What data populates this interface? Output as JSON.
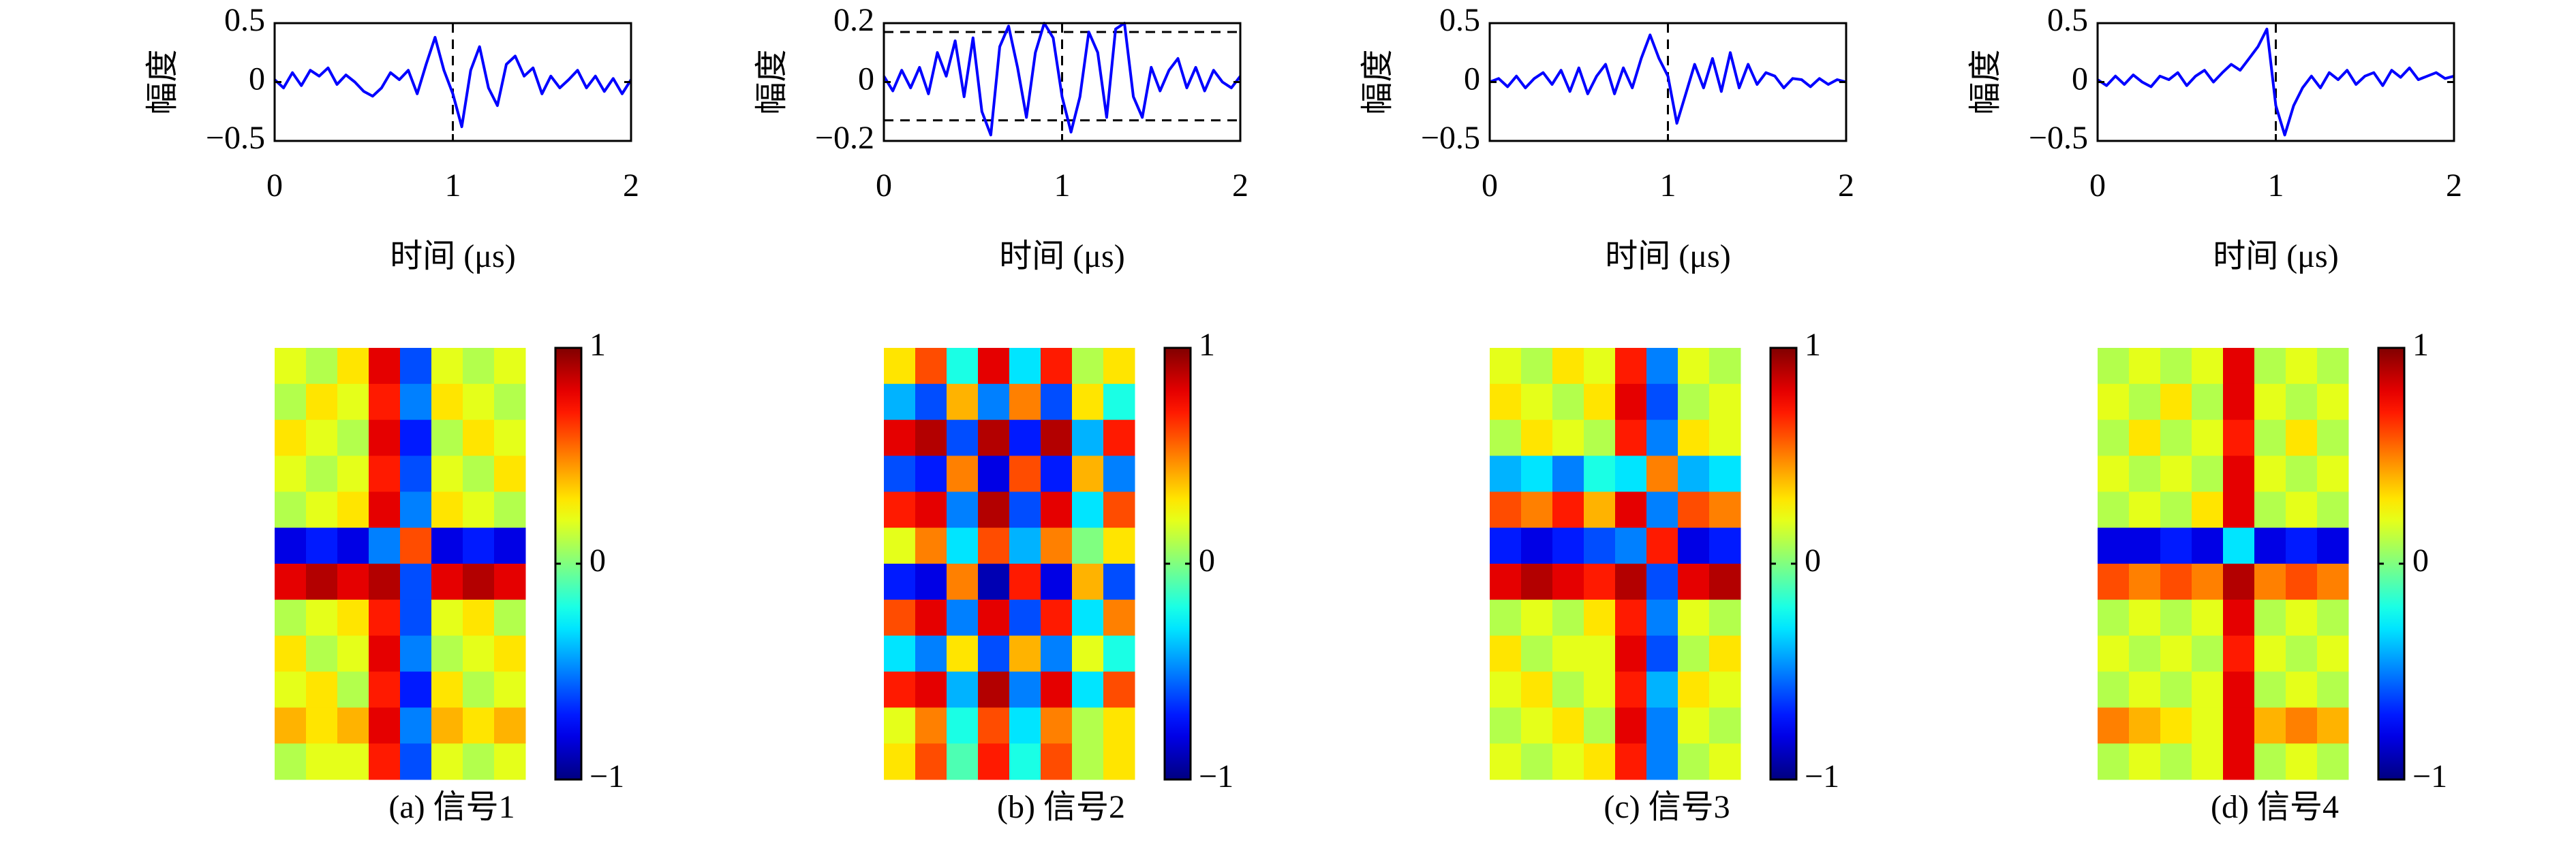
{
  "chart_data": [
    {
      "type": "line",
      "color": "#0000ff",
      "x": [
        0,
        0.05,
        0.1,
        0.15,
        0.2,
        0.25,
        0.3,
        0.35,
        0.4,
        0.45,
        0.5,
        0.55,
        0.6,
        0.65,
        0.7,
        0.75,
        0.8,
        0.85,
        0.9,
        0.95,
        1,
        1.05,
        1.1,
        1.15,
        1.2,
        1.25,
        1.3,
        1.35,
        1.4,
        1.45,
        1.5,
        1.55,
        1.6,
        1.65,
        1.7,
        1.75,
        1.8,
        1.85,
        1.9,
        1.95,
        2
      ],
      "values": [
        0.02,
        -0.05,
        0.08,
        -0.03,
        0.1,
        0.05,
        0.12,
        -0.02,
        0.06,
        0.0,
        -0.08,
        -0.12,
        -0.05,
        0.08,
        0.02,
        0.1,
        -0.1,
        0.15,
        0.38,
        0.1,
        -0.1,
        -0.38,
        0.1,
        0.3,
        -0.05,
        -0.2,
        0.15,
        0.22,
        0.05,
        0.12,
        -0.1,
        0.05,
        -0.05,
        0.02,
        0.1,
        -0.05,
        0.05,
        -0.08,
        0.03,
        -0.1,
        0.02
      ],
      "xlim": [
        0,
        2
      ],
      "xticks": [
        0,
        1,
        2
      ],
      "ylim": [
        -0.5,
        0.5
      ],
      "yticks": [
        {
          "value": -0.5,
          "label": "−0.5"
        },
        0,
        0.5
      ],
      "xlabel": "时间 (μs)",
      "ylabel": "幅度",
      "vlines": [
        1
      ]
    },
    {
      "type": "line",
      "color": "#0000ff",
      "x": [
        0,
        0.05,
        0.1,
        0.15,
        0.2,
        0.25,
        0.3,
        0.35,
        0.4,
        0.45,
        0.5,
        0.55,
        0.6,
        0.65,
        0.7,
        0.75,
        0.8,
        0.85,
        0.9,
        0.95,
        1,
        1.05,
        1.1,
        1.15,
        1.2,
        1.25,
        1.3,
        1.35,
        1.4,
        1.45,
        1.5,
        1.55,
        1.6,
        1.65,
        1.7,
        1.75,
        1.8,
        1.85,
        1.9,
        1.95,
        2
      ],
      "values": [
        0.02,
        -0.03,
        0.04,
        -0.02,
        0.05,
        -0.04,
        0.1,
        0.02,
        0.14,
        -0.05,
        0.15,
        -0.1,
        -0.18,
        0.12,
        0.19,
        0.05,
        -0.12,
        0.1,
        0.2,
        0.15,
        -0.05,
        -0.17,
        -0.05,
        0.17,
        0.1,
        -0.12,
        0.18,
        0.2,
        -0.05,
        -0.12,
        0.05,
        -0.03,
        0.04,
        0.08,
        -0.02,
        0.05,
        -0.03,
        0.04,
        0.0,
        -0.02,
        0.02
      ],
      "xlim": [
        0,
        2
      ],
      "xticks": [
        0,
        1,
        2
      ],
      "ylim": [
        -0.2,
        0.2
      ],
      "yticks": [
        {
          "value": -0.2,
          "label": "−0.2"
        },
        0,
        0.2
      ],
      "xlabel": "时间 (μs)",
      "ylabel": "幅度",
      "vlines": [
        1
      ],
      "hlines": [
        0.17,
        -0.13
      ]
    },
    {
      "type": "line",
      "color": "#0000ff",
      "x": [
        0,
        0.05,
        0.1,
        0.15,
        0.2,
        0.25,
        0.3,
        0.35,
        0.4,
        0.45,
        0.5,
        0.55,
        0.6,
        0.65,
        0.7,
        0.75,
        0.8,
        0.85,
        0.9,
        0.95,
        1,
        1.05,
        1.1,
        1.15,
        1.2,
        1.25,
        1.3,
        1.35,
        1.4,
        1.45,
        1.5,
        1.55,
        1.6,
        1.65,
        1.7,
        1.75,
        1.8,
        1.85,
        1.9,
        1.95,
        2
      ],
      "values": [
        0.0,
        0.03,
        -0.04,
        0.05,
        -0.05,
        0.03,
        0.08,
        -0.02,
        0.1,
        -0.08,
        0.12,
        -0.1,
        0.05,
        0.15,
        -0.1,
        0.12,
        -0.05,
        0.2,
        0.4,
        0.2,
        0.05,
        -0.35,
        -0.1,
        0.15,
        -0.05,
        0.2,
        -0.08,
        0.25,
        -0.05,
        0.15,
        -0.02,
        0.08,
        0.05,
        -0.05,
        0.03,
        0.02,
        -0.04,
        0.03,
        -0.02,
        0.02,
        0.0
      ],
      "xlim": [
        0,
        2
      ],
      "xticks": [
        0,
        1,
        2
      ],
      "ylim": [
        -0.5,
        0.5
      ],
      "yticks": [
        {
          "value": -0.5,
          "label": "−0.5"
        },
        0,
        0.5
      ],
      "xlabel": "时间 (μs)",
      "ylabel": "幅度",
      "vlines": [
        1
      ]
    },
    {
      "type": "line",
      "color": "#0000ff",
      "x": [
        0,
        0.05,
        0.1,
        0.15,
        0.2,
        0.25,
        0.3,
        0.35,
        0.4,
        0.45,
        0.5,
        0.55,
        0.6,
        0.65,
        0.7,
        0.75,
        0.8,
        0.85,
        0.9,
        0.95,
        1,
        1.05,
        1.1,
        1.15,
        1.2,
        1.25,
        1.3,
        1.35,
        1.4,
        1.45,
        1.5,
        1.55,
        1.6,
        1.65,
        1.7,
        1.75,
        1.8,
        1.85,
        1.9,
        1.95,
        2
      ],
      "values": [
        0.02,
        -0.03,
        0.05,
        -0.02,
        0.06,
        0.0,
        -0.04,
        0.05,
        0.02,
        0.08,
        -0.03,
        0.05,
        0.1,
        0.0,
        0.08,
        0.15,
        0.1,
        0.2,
        0.3,
        0.45,
        -0.2,
        -0.45,
        -0.2,
        -0.05,
        0.05,
        -0.05,
        0.08,
        0.02,
        0.1,
        -0.02,
        0.05,
        0.08,
        -0.03,
        0.1,
        0.04,
        0.12,
        0.02,
        0.05,
        0.08,
        0.03,
        0.05
      ],
      "xlim": [
        0,
        2
      ],
      "xticks": [
        0,
        1,
        2
      ],
      "ylim": [
        -0.5,
        0.5
      ],
      "yticks": [
        {
          "value": -0.5,
          "label": "−0.5"
        },
        0,
        0.5
      ],
      "xlabel": "时间 (μs)",
      "ylabel": "幅度",
      "vlines": [
        1
      ]
    },
    {
      "type": "heatmap",
      "caption": "(a) 信号1",
      "zlim": [
        -1,
        1
      ],
      "cticks": [
        {
          "value": -1,
          "label": "−1"
        },
        0,
        1
      ],
      "values": [
        [
          0.2,
          0.1,
          0.3,
          0.8,
          -0.6,
          0.2,
          0.1,
          0.2
        ],
        [
          0.1,
          0.3,
          0.2,
          0.7,
          -0.5,
          0.3,
          0.2,
          0.1
        ],
        [
          0.3,
          0.2,
          0.1,
          0.8,
          -0.7,
          0.1,
          0.3,
          0.2
        ],
        [
          0.2,
          0.1,
          0.2,
          0.7,
          -0.6,
          0.2,
          0.1,
          0.3
        ],
        [
          0.1,
          0.2,
          0.3,
          0.8,
          -0.5,
          0.3,
          0.2,
          0.1
        ],
        [
          -0.8,
          -0.7,
          -0.8,
          -0.5,
          0.6,
          -0.8,
          -0.7,
          -0.8
        ],
        [
          0.8,
          0.9,
          0.8,
          0.9,
          -0.6,
          0.8,
          0.9,
          0.8
        ],
        [
          0.1,
          0.2,
          0.3,
          0.7,
          -0.6,
          0.2,
          0.3,
          0.1
        ],
        [
          0.3,
          0.1,
          0.2,
          0.8,
          -0.5,
          0.1,
          0.2,
          0.3
        ],
        [
          0.2,
          0.3,
          0.1,
          0.7,
          -0.7,
          0.3,
          0.1,
          0.2
        ],
        [
          0.4,
          0.3,
          0.4,
          0.8,
          -0.5,
          0.4,
          0.3,
          0.4
        ],
        [
          0.1,
          0.2,
          0.2,
          0.7,
          -0.6,
          0.2,
          0.1,
          0.2
        ]
      ]
    },
    {
      "type": "heatmap",
      "caption": "(b) 信号2",
      "zlim": [
        -1,
        1
      ],
      "cticks": [
        {
          "value": -1,
          "label": "−1"
        },
        0,
        1
      ],
      "values": [
        [
          0.3,
          0.6,
          -0.2,
          0.8,
          -0.3,
          0.7,
          0.1,
          0.3
        ],
        [
          -0.4,
          -0.6,
          0.4,
          -0.5,
          0.5,
          -0.6,
          0.3,
          -0.2
        ],
        [
          0.8,
          0.9,
          -0.6,
          0.9,
          -0.7,
          0.9,
          -0.4,
          0.7
        ],
        [
          -0.6,
          -0.7,
          0.5,
          -0.8,
          0.6,
          -0.7,
          0.4,
          -0.5
        ],
        [
          0.7,
          0.8,
          -0.5,
          0.9,
          -0.6,
          0.8,
          -0.3,
          0.6
        ],
        [
          0.2,
          0.5,
          -0.3,
          0.6,
          -0.4,
          0.5,
          0.0,
          0.3
        ],
        [
          -0.7,
          -0.8,
          0.5,
          -0.9,
          0.7,
          -0.8,
          0.4,
          -0.6
        ],
        [
          0.6,
          0.8,
          -0.5,
          0.8,
          -0.6,
          0.7,
          -0.3,
          0.5
        ],
        [
          -0.3,
          -0.5,
          0.3,
          -0.6,
          0.4,
          -0.5,
          0.2,
          -0.2
        ],
        [
          0.7,
          0.8,
          -0.4,
          0.9,
          -0.5,
          0.8,
          -0.3,
          0.6
        ],
        [
          0.2,
          0.5,
          -0.2,
          0.6,
          -0.3,
          0.5,
          0.1,
          0.3
        ],
        [
          0.3,
          0.6,
          -0.1,
          0.7,
          -0.2,
          0.6,
          0.1,
          0.3
        ]
      ]
    },
    {
      "type": "heatmap",
      "caption": "(c) 信号3",
      "zlim": [
        -1,
        1
      ],
      "cticks": [
        {
          "value": -1,
          "label": "−1"
        },
        0,
        1
      ],
      "values": [
        [
          0.2,
          0.1,
          0.3,
          0.2,
          0.7,
          -0.5,
          0.2,
          0.1
        ],
        [
          0.3,
          0.2,
          0.1,
          0.3,
          0.8,
          -0.6,
          0.1,
          0.2
        ],
        [
          0.1,
          0.3,
          0.2,
          0.1,
          0.7,
          -0.5,
          0.3,
          0.2
        ],
        [
          -0.4,
          -0.3,
          -0.5,
          -0.2,
          -0.3,
          0.5,
          -0.4,
          -0.3
        ],
        [
          0.6,
          0.5,
          0.7,
          0.4,
          0.8,
          -0.5,
          0.6,
          0.5
        ],
        [
          -0.7,
          -0.8,
          -0.7,
          -0.6,
          -0.5,
          0.7,
          -0.8,
          -0.7
        ],
        [
          0.8,
          0.9,
          0.8,
          0.7,
          0.9,
          -0.6,
          0.8,
          0.9
        ],
        [
          0.1,
          0.2,
          0.1,
          0.3,
          0.7,
          -0.5,
          0.2,
          0.1
        ],
        [
          0.3,
          0.1,
          0.2,
          0.2,
          0.8,
          -0.6,
          0.1,
          0.3
        ],
        [
          0.2,
          0.3,
          0.1,
          0.2,
          0.7,
          -0.4,
          0.3,
          0.2
        ],
        [
          0.1,
          0.2,
          0.3,
          0.1,
          0.8,
          -0.5,
          0.2,
          0.1
        ],
        [
          0.2,
          0.1,
          0.2,
          0.3,
          0.7,
          -0.5,
          0.1,
          0.2
        ]
      ]
    },
    {
      "type": "heatmap",
      "caption": "(d) 信号4",
      "zlim": [
        -1,
        1
      ],
      "cticks": [
        {
          "value": -1,
          "label": "−1"
        },
        0,
        1
      ],
      "values": [
        [
          0.1,
          0.2,
          0.1,
          0.2,
          0.8,
          0.1,
          0.2,
          0.1
        ],
        [
          0.2,
          0.1,
          0.3,
          0.1,
          0.8,
          0.2,
          0.1,
          0.2
        ],
        [
          0.1,
          0.3,
          0.1,
          0.2,
          0.7,
          0.1,
          0.3,
          0.1
        ],
        [
          0.2,
          0.1,
          0.2,
          0.1,
          0.8,
          0.2,
          0.1,
          0.2
        ],
        [
          0.1,
          0.2,
          0.1,
          0.3,
          0.8,
          0.1,
          0.2,
          0.1
        ],
        [
          -0.8,
          -0.8,
          -0.7,
          -0.8,
          -0.3,
          -0.8,
          -0.7,
          -0.8
        ],
        [
          0.6,
          0.5,
          0.6,
          0.5,
          0.9,
          0.5,
          0.6,
          0.5
        ],
        [
          0.1,
          0.2,
          0.1,
          0.2,
          0.8,
          0.1,
          0.2,
          0.1
        ],
        [
          0.2,
          0.1,
          0.2,
          0.1,
          0.7,
          0.2,
          0.1,
          0.2
        ],
        [
          0.1,
          0.2,
          0.1,
          0.2,
          0.8,
          0.1,
          0.2,
          0.1
        ],
        [
          0.5,
          0.4,
          0.3,
          0.2,
          0.8,
          0.4,
          0.5,
          0.4
        ],
        [
          0.1,
          0.2,
          0.1,
          0.2,
          0.8,
          0.1,
          0.2,
          0.1
        ]
      ]
    }
  ]
}
